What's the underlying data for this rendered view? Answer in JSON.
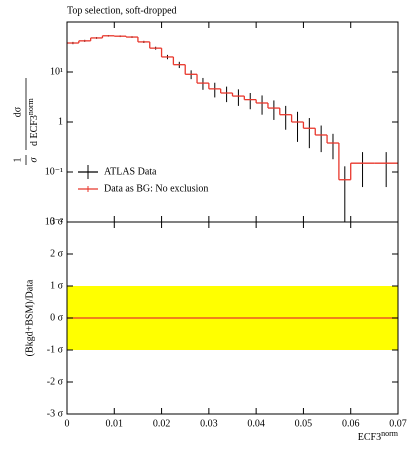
{
  "chart_data": {
    "type": "histogram",
    "title": "Top selection, soft-dropped",
    "bins": [
      0,
      0.0025,
      0.005,
      0.0075,
      0.01,
      0.0125,
      0.015,
      0.0175,
      0.02,
      0.0225,
      0.025,
      0.0275,
      0.03,
      0.0325,
      0.035,
      0.0375,
      0.04,
      0.0425,
      0.045,
      0.0475,
      0.05,
      0.0525,
      0.055,
      0.0575,
      0.06,
      0.065,
      0.07
    ],
    "log_y": true,
    "ylim": [
      0.01,
      100
    ],
    "yticks": [
      {
        "value": 0.01,
        "label": "10⁻²"
      },
      {
        "value": 0.1,
        "label": "10⁻¹"
      },
      1,
      {
        "value": 10,
        "label": "10¹"
      }
    ],
    "xlim": [
      0,
      0.07
    ],
    "xticks": [
      0,
      0.01,
      0.02,
      0.03,
      0.04,
      0.05,
      0.06,
      0.07
    ],
    "xlabel": "ECF3",
    "xlabel_sup": "norm",
    "ylabel": {
      "left_num": "1",
      "left_den": "σ",
      "num": "dσ",
      "den": "d ECF3",
      "den_sup": "norm"
    },
    "series": [
      {
        "name": "ATLAS Data",
        "color": "#000000",
        "style": "points",
        "values": [
          38,
          42,
          48,
          53,
          52,
          50,
          40,
          30,
          20,
          14,
          9,
          6,
          4.6,
          3.8,
          3.3,
          2.8,
          2.4,
          1.9,
          1.4,
          1.0,
          0.75,
          0.55,
          0.38,
          0.07,
          0.15,
          0.15
        ],
        "errors": [
          2,
          2,
          2,
          2,
          2,
          2,
          2,
          2,
          2,
          2,
          1.8,
          1.6,
          1.5,
          1.3,
          1.2,
          1.0,
          1.0,
          0.8,
          0.7,
          0.6,
          0.45,
          0.3,
          0.2,
          0.06,
          0.1,
          0.1
        ]
      },
      {
        "name": "Data as BG: No exclusion",
        "color": "#e8372c",
        "style": "step",
        "values": [
          38,
          42,
          48,
          53,
          52,
          50,
          40,
          30,
          20,
          14,
          9,
          6,
          4.6,
          3.8,
          3.3,
          2.8,
          2.4,
          1.9,
          1.4,
          1.0,
          0.75,
          0.55,
          0.38,
          0.07,
          0.15,
          0.15
        ]
      }
    ],
    "legend": "lower left",
    "ratio": {
      "ylabel": "(Bkgd+BSM)/Data",
      "ylim": [
        -3,
        3
      ],
      "yticks": [
        {
          "value": -3,
          "label": "-3 σ"
        },
        {
          "value": -2,
          "label": "-2 σ"
        },
        {
          "value": -1,
          "label": "-1 σ"
        },
        {
          "value": 0,
          "label": "0 σ"
        },
        {
          "value": 1,
          "label": "1 σ"
        },
        {
          "value": 2,
          "label": "2 σ"
        },
        {
          "value": 3,
          "label": "3 σ"
        }
      ],
      "band": [
        -1,
        1
      ],
      "band_color": "#ffff00",
      "line": 0,
      "line_color": "#e8372c"
    }
  }
}
